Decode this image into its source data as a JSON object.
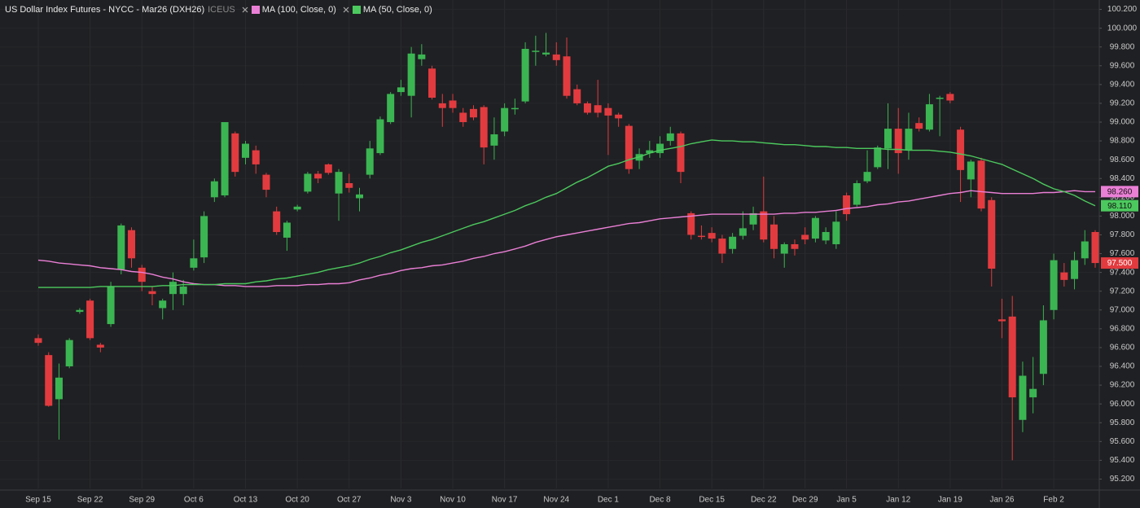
{
  "chart_data": {
    "type": "candlestick",
    "title": "US Dollar Index Futures - NYCC - Mar26 (DXH26)",
    "exchange": "ICEUS",
    "up_color": "#3bb552",
    "down_color": "#e23b3f",
    "last_label": "97.500",
    "grid": true,
    "ylim": [
      95.1,
      100.3
    ],
    "yticks": [
      {
        "value": 95.2,
        "label": "95.200"
      },
      {
        "value": 95.4,
        "label": "95.400"
      },
      {
        "value": 95.6,
        "label": "95.600"
      },
      {
        "value": 95.8,
        "label": "95.800"
      },
      {
        "value": 96.0,
        "label": "96.000"
      },
      {
        "value": 96.2,
        "label": "96.200"
      },
      {
        "value": 96.4,
        "label": "96.400"
      },
      {
        "value": 96.6,
        "label": "96.600"
      },
      {
        "value": 96.8,
        "label": "96.800"
      },
      {
        "value": 97.0,
        "label": "97.000"
      },
      {
        "value": 97.2,
        "label": "97.200"
      },
      {
        "value": 97.4,
        "label": "97.400"
      },
      {
        "value": 97.6,
        "label": "97.600"
      },
      {
        "value": 97.8,
        "label": "97.800"
      },
      {
        "value": 98.0,
        "label": "98.000"
      },
      {
        "value": 98.2,
        "label": "98.200"
      },
      {
        "value": 98.4,
        "label": "98.400"
      },
      {
        "value": 98.6,
        "label": "98.600"
      },
      {
        "value": 98.8,
        "label": "98.800"
      },
      {
        "value": 99.0,
        "label": "99.000"
      },
      {
        "value": 99.2,
        "label": "99.200"
      },
      {
        "value": 99.4,
        "label": "99.400"
      },
      {
        "value": 99.6,
        "label": "99.600"
      },
      {
        "value": 99.8,
        "label": "99.800"
      },
      {
        "value": 100.0,
        "label": "100.000"
      },
      {
        "value": 100.2,
        "label": "100.200"
      }
    ],
    "categories": [
      "Sep 15",
      null,
      null,
      null,
      null,
      "Sep 22",
      null,
      null,
      null,
      null,
      "Sep 29",
      null,
      null,
      null,
      null,
      "Oct 6",
      null,
      null,
      null,
      null,
      "Oct 13",
      null,
      null,
      null,
      null,
      "Oct 20",
      null,
      null,
      null,
      null,
      "Oct 27",
      null,
      null,
      null,
      null,
      "Nov 3",
      null,
      null,
      null,
      null,
      "Nov 10",
      null,
      null,
      null,
      null,
      "Nov 17",
      null,
      null,
      null,
      null,
      "Nov 24",
      null,
      null,
      null,
      null,
      "Dec 1",
      null,
      null,
      null,
      null,
      "Dec 8",
      null,
      null,
      null,
      null,
      "Dec 15",
      null,
      null,
      null,
      null,
      "Dec 22",
      null,
      null,
      null,
      "Dec 29",
      null,
      null,
      null,
      "Jan 5",
      null,
      null,
      null,
      null,
      "Jan 12",
      null,
      null,
      null,
      null,
      "Jan 19",
      null,
      null,
      null,
      null,
      "Jan 26",
      null,
      null,
      null,
      null,
      "Feb 2",
      null,
      null,
      null,
      null
    ],
    "open": [
      96.7,
      96.52,
      96.05,
      96.4,
      96.98,
      97.1,
      96.63,
      96.85,
      97.43,
      97.85,
      97.45,
      97.2,
      97.02,
      97.17,
      97.17,
      97.45,
      97.56,
      98.2,
      98.22,
      98.88,
      98.62,
      98.7,
      98.44,
      98.05,
      97.77,
      98.07,
      98.26,
      98.45,
      98.55,
      98.24,
      98.35,
      98.19,
      98.44,
      98.67,
      99.0,
      99.32,
      99.28,
      99.67,
      99.57,
      99.2,
      99.23,
      99.1,
      99.14,
      99.16,
      98.75,
      98.9,
      99.14,
      99.22,
      99.75,
      99.72,
      99.72,
      99.7,
      99.35,
      99.2,
      99.18,
      99.15,
      99.08,
      98.96,
      98.59,
      98.67,
      98.67,
      98.8,
      98.88,
      98.03,
      97.79,
      97.82,
      97.76,
      97.65,
      97.79,
      97.91,
      98.05,
      97.91,
      97.6,
      97.7,
      97.8,
      97.76,
      97.74,
      97.7,
      98.22,
      98.12,
      98.37,
      98.52,
      98.72,
      98.93,
      98.7,
      98.99,
      98.92,
      99.25,
      99.3,
      98.92,
      98.39,
      98.59,
      98.17,
      96.9,
      96.93,
      95.83,
      96.07,
      96.32,
      97.0,
      97.4,
      97.33,
      97.55,
      97.83
    ],
    "high": [
      96.74,
      96.55,
      96.43,
      96.7,
      97.02,
      97.12,
      96.65,
      97.3,
      97.92,
      97.88,
      97.48,
      97.25,
      97.12,
      97.4,
      97.32,
      97.75,
      98.05,
      98.4,
      99.0,
      98.9,
      98.8,
      98.75,
      98.46,
      98.1,
      97.95,
      98.12,
      98.47,
      98.48,
      98.56,
      98.5,
      98.45,
      98.3,
      98.8,
      99.06,
      99.32,
      99.45,
      99.8,
      99.83,
      99.6,
      99.3,
      99.3,
      99.15,
      99.18,
      99.18,
      99.05,
      99.2,
      99.25,
      99.85,
      99.92,
      99.95,
      99.85,
      99.9,
      99.4,
      99.22,
      99.45,
      99.2,
      99.1,
      98.98,
      98.72,
      98.8,
      98.85,
      98.95,
      98.9,
      98.05,
      97.9,
      97.88,
      97.8,
      97.82,
      98.05,
      98.1,
      98.42,
      98.0,
      97.72,
      97.75,
      97.88,
      98.0,
      97.88,
      98.05,
      98.25,
      98.38,
      98.7,
      98.75,
      99.2,
      99.15,
      99.1,
      99.05,
      99.3,
      99.28,
      99.32,
      98.95,
      98.6,
      98.62,
      98.2,
      97.12,
      97.15,
      96.45,
      96.5,
      97.05,
      97.6,
      97.5,
      97.62,
      97.85,
      97.85
    ],
    "low": [
      96.62,
      95.97,
      95.62,
      96.38,
      96.96,
      96.68,
      96.55,
      96.82,
      97.38,
      97.45,
      97.2,
      97.05,
      96.9,
      97.0,
      97.05,
      97.42,
      97.5,
      98.15,
      98.2,
      98.42,
      98.55,
      98.45,
      98.2,
      97.8,
      97.63,
      98.05,
      98.24,
      98.35,
      98.44,
      97.95,
      98.25,
      98.05,
      98.4,
      98.65,
      98.98,
      99.28,
      99.05,
      99.6,
      99.24,
      98.95,
      99.1,
      98.95,
      99.02,
      98.55,
      98.6,
      98.85,
      99.08,
      99.2,
      99.6,
      99.7,
      99.6,
      99.25,
      99.18,
      99.08,
      99.05,
      98.65,
      98.95,
      98.45,
      98.5,
      98.62,
      98.62,
      98.75,
      98.35,
      97.75,
      97.75,
      97.72,
      97.5,
      97.6,
      97.75,
      97.85,
      97.72,
      97.55,
      97.45,
      97.58,
      97.7,
      97.72,
      97.7,
      97.65,
      97.95,
      98.1,
      98.35,
      98.5,
      98.5,
      98.45,
      98.6,
      98.9,
      98.9,
      98.85,
      99.2,
      98.15,
      98.2,
      98.05,
      97.25,
      96.7,
      95.4,
      95.7,
      95.9,
      96.2,
      96.9,
      97.25,
      97.22,
      97.48,
      97.45
    ],
    "close": [
      96.65,
      95.98,
      96.28,
      96.68,
      97.0,
      96.7,
      96.6,
      97.25,
      97.9,
      97.55,
      97.3,
      97.17,
      97.1,
      97.3,
      97.25,
      97.55,
      98.0,
      98.37,
      99.0,
      98.47,
      98.77,
      98.55,
      98.28,
      97.83,
      97.93,
      98.1,
      98.45,
      98.4,
      98.46,
      98.47,
      98.3,
      98.23,
      98.72,
      99.03,
      99.3,
      99.37,
      99.73,
      99.72,
      99.26,
      99.15,
      99.15,
      99.0,
      99.05,
      98.73,
      98.87,
      99.15,
      99.15,
      99.78,
      99.76,
      99.74,
      99.66,
      99.28,
      99.2,
      99.1,
      99.1,
      99.07,
      99.04,
      98.5,
      98.66,
      98.7,
      98.77,
      98.88,
      98.47,
      97.8,
      97.78,
      97.76,
      97.6,
      97.78,
      97.87,
      98.03,
      97.75,
      97.65,
      97.7,
      97.65,
      97.75,
      97.98,
      97.83,
      97.94,
      98.02,
      98.35,
      98.47,
      98.73,
      98.93,
      98.67,
      98.93,
      98.93,
      99.19,
      99.26,
      99.23,
      98.49,
      98.58,
      98.08,
      97.44,
      96.88,
      96.07,
      96.3,
      96.16,
      96.89,
      97.53,
      97.32,
      97.53,
      97.73,
      97.5
    ],
    "series": [
      {
        "name": "MA (100, Close, 0)",
        "color": "#ea7fd6",
        "last_label": "98.260",
        "values": [
          97.53,
          97.52,
          97.5,
          97.49,
          97.48,
          97.47,
          97.45,
          97.44,
          97.43,
          97.41,
          97.4,
          97.38,
          97.35,
          97.33,
          97.3,
          97.28,
          97.27,
          97.27,
          97.26,
          97.26,
          97.25,
          97.25,
          97.25,
          97.26,
          97.26,
          97.26,
          97.27,
          97.27,
          97.28,
          97.28,
          97.29,
          97.32,
          97.34,
          97.37,
          97.39,
          97.42,
          97.44,
          97.45,
          97.47,
          97.48,
          97.5,
          97.52,
          97.55,
          97.57,
          97.6,
          97.62,
          97.65,
          97.68,
          97.72,
          97.75,
          97.78,
          97.8,
          97.82,
          97.84,
          97.86,
          97.88,
          97.9,
          97.92,
          97.93,
          97.95,
          97.97,
          97.98,
          97.99,
          98.0,
          98.01,
          98.02,
          98.02,
          98.02,
          98.02,
          98.02,
          98.02,
          98.02,
          98.03,
          98.03,
          98.04,
          98.04,
          98.05,
          98.06,
          98.08,
          98.09,
          98.1,
          98.12,
          98.13,
          98.15,
          98.16,
          98.18,
          98.2,
          98.22,
          98.24,
          98.25,
          98.27,
          98.26,
          98.25,
          98.24,
          98.24,
          98.24,
          98.24,
          98.25,
          98.25,
          98.26,
          98.27,
          98.26,
          98.26
        ]
      },
      {
        "name": "MA (50, Close, 0)",
        "color": "#4cc95e",
        "last_label": "98.110",
        "values": [
          97.24,
          97.24,
          97.24,
          97.24,
          97.24,
          97.24,
          97.25,
          97.25,
          97.25,
          97.25,
          97.25,
          97.25,
          97.26,
          97.26,
          97.27,
          97.27,
          97.27,
          97.27,
          97.28,
          97.28,
          97.28,
          97.3,
          97.31,
          97.33,
          97.34,
          97.36,
          97.38,
          97.4,
          97.43,
          97.45,
          97.47,
          97.5,
          97.54,
          97.57,
          97.61,
          97.64,
          97.68,
          97.72,
          97.75,
          97.79,
          97.83,
          97.87,
          97.91,
          97.94,
          97.98,
          98.02,
          98.06,
          98.11,
          98.15,
          98.2,
          98.24,
          98.3,
          98.36,
          98.41,
          98.47,
          98.53,
          98.56,
          98.6,
          98.63,
          98.67,
          98.7,
          98.72,
          98.74,
          98.77,
          98.79,
          98.81,
          98.8,
          98.8,
          98.79,
          98.79,
          98.78,
          98.77,
          98.76,
          98.76,
          98.75,
          98.74,
          98.74,
          98.73,
          98.73,
          98.72,
          98.72,
          98.72,
          98.71,
          98.71,
          98.7,
          98.7,
          98.7,
          98.69,
          98.68,
          98.66,
          98.64,
          98.61,
          98.58,
          98.55,
          98.5,
          98.45,
          98.4,
          98.34,
          98.29,
          98.26,
          98.22,
          98.16,
          98.11
        ]
      }
    ]
  }
}
